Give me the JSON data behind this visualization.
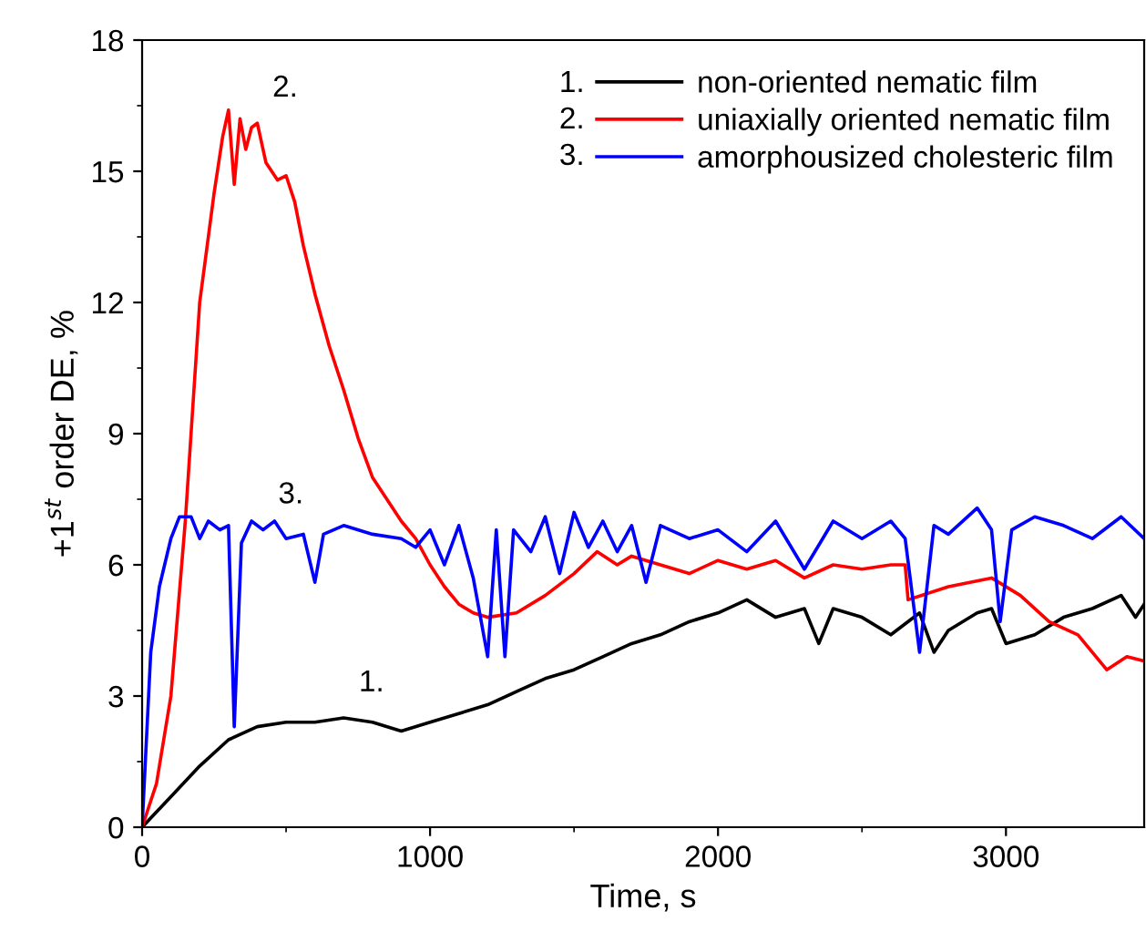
{
  "chart_data": {
    "type": "line",
    "xlabel": "Time, s",
    "ylabel": "+1$^{st}$ order DE, %",
    "xlim": [
      0,
      3480
    ],
    "xticks": [
      0,
      1000,
      2000,
      3000
    ],
    "ylim": [
      0,
      18
    ],
    "yticks": [
      0,
      3,
      6,
      9,
      12,
      15,
      18
    ],
    "grid": false,
    "legend": "top right",
    "marker": "none",
    "line_style": "solid",
    "annotations": [
      "1.",
      "2.",
      "3.",
      {
        "text": "1.",
        "x": 700,
        "y": 2.5
      },
      {
        "text": "2.",
        "x": 400,
        "y": 16.1
      },
      {
        "text": "3.",
        "x": 420,
        "y": 6.8
      }
    ],
    "series": [
      {
        "name": "non-oriented nematic film",
        "color": "#000000",
        "x": [
          0,
          100,
          200,
          300,
          400,
          500,
          600,
          700,
          800,
          900,
          1000,
          1100,
          1200,
          1300,
          1400,
          1500,
          1600,
          1700,
          1800,
          1900,
          2000,
          2100,
          2200,
          2300,
          2350,
          2400,
          2500,
          2600,
          2700,
          2750,
          2800,
          2900,
          2950,
          3000,
          3100,
          3200,
          3300,
          3400,
          3450,
          3480
        ],
        "values": [
          0,
          0.7,
          1.4,
          2.0,
          2.3,
          2.4,
          2.4,
          2.5,
          2.4,
          2.2,
          2.4,
          2.6,
          2.8,
          3.1,
          3.4,
          3.6,
          3.9,
          4.2,
          4.4,
          4.7,
          4.9,
          5.2,
          4.8,
          5.0,
          4.2,
          5.0,
          4.8,
          4.4,
          4.9,
          4.0,
          4.5,
          4.9,
          5.0,
          4.2,
          4.4,
          4.8,
          5.0,
          5.3,
          4.8,
          5.1
        ]
      },
      {
        "name": "uniaxially oriented nematic film",
        "color": "#ff0000",
        "x": [
          0,
          50,
          100,
          150,
          200,
          250,
          280,
          300,
          320,
          340,
          360,
          380,
          400,
          430,
          470,
          500,
          530,
          560,
          600,
          650,
          700,
          750,
          800,
          850,
          900,
          950,
          1000,
          1050,
          1100,
          1150,
          1200,
          1300,
          1400,
          1500,
          1580,
          1650,
          1700,
          1800,
          1900,
          2000,
          2100,
          2200,
          2300,
          2400,
          2500,
          2600,
          2650,
          2660,
          2800,
          2950,
          3050,
          3150,
          3250,
          3350,
          3420,
          3480
        ],
        "values": [
          0,
          1.0,
          3,
          7,
          12,
          14.5,
          15.8,
          16.4,
          14.7,
          16.2,
          15.5,
          16.0,
          16.1,
          15.2,
          14.8,
          14.9,
          14.3,
          13.3,
          12.2,
          11.0,
          10.0,
          8.9,
          8.0,
          7.5,
          7.0,
          6.6,
          6.0,
          5.5,
          5.1,
          4.9,
          4.8,
          4.9,
          5.3,
          5.8,
          6.3,
          6.0,
          6.2,
          6.0,
          5.8,
          6.1,
          5.9,
          6.1,
          5.7,
          6.0,
          5.9,
          6.0,
          6.0,
          5.2,
          5.5,
          5.7,
          5.3,
          4.7,
          4.4,
          3.6,
          3.9,
          3.8
        ]
      },
      {
        "name": "amorphousized cholesteric film",
        "color": "#0000ff",
        "x": [
          0,
          30,
          60,
          100,
          130,
          170,
          200,
          230,
          270,
          300,
          320,
          345,
          380,
          420,
          460,
          500,
          560,
          600,
          630,
          700,
          800,
          900,
          950,
          1000,
          1050,
          1100,
          1150,
          1200,
          1230,
          1260,
          1290,
          1350,
          1400,
          1450,
          1500,
          1550,
          1600,
          1650,
          1700,
          1750,
          1800,
          1900,
          2000,
          2100,
          2200,
          2300,
          2400,
          2500,
          2600,
          2650,
          2700,
          2750,
          2800,
          2900,
          2950,
          2980,
          3020,
          3100,
          3200,
          3300,
          3400,
          3480
        ],
        "values": [
          0,
          4,
          5.5,
          6.6,
          7.1,
          7.1,
          6.6,
          7.0,
          6.8,
          6.9,
          2.3,
          6.5,
          7.0,
          6.8,
          7.0,
          6.6,
          6.7,
          5.6,
          6.7,
          6.9,
          6.7,
          6.6,
          6.4,
          6.8,
          6.0,
          6.9,
          5.7,
          3.9,
          6.8,
          3.9,
          6.8,
          6.3,
          7.1,
          5.8,
          7.2,
          6.4,
          7.0,
          6.3,
          6.9,
          5.6,
          6.9,
          6.6,
          6.8,
          6.3,
          7.0,
          5.9,
          7.0,
          6.6,
          7.0,
          6.6,
          4.0,
          6.9,
          6.7,
          7.3,
          6.8,
          4.7,
          6.8,
          7.1,
          6.9,
          6.6,
          7.1,
          6.6
        ]
      }
    ]
  }
}
